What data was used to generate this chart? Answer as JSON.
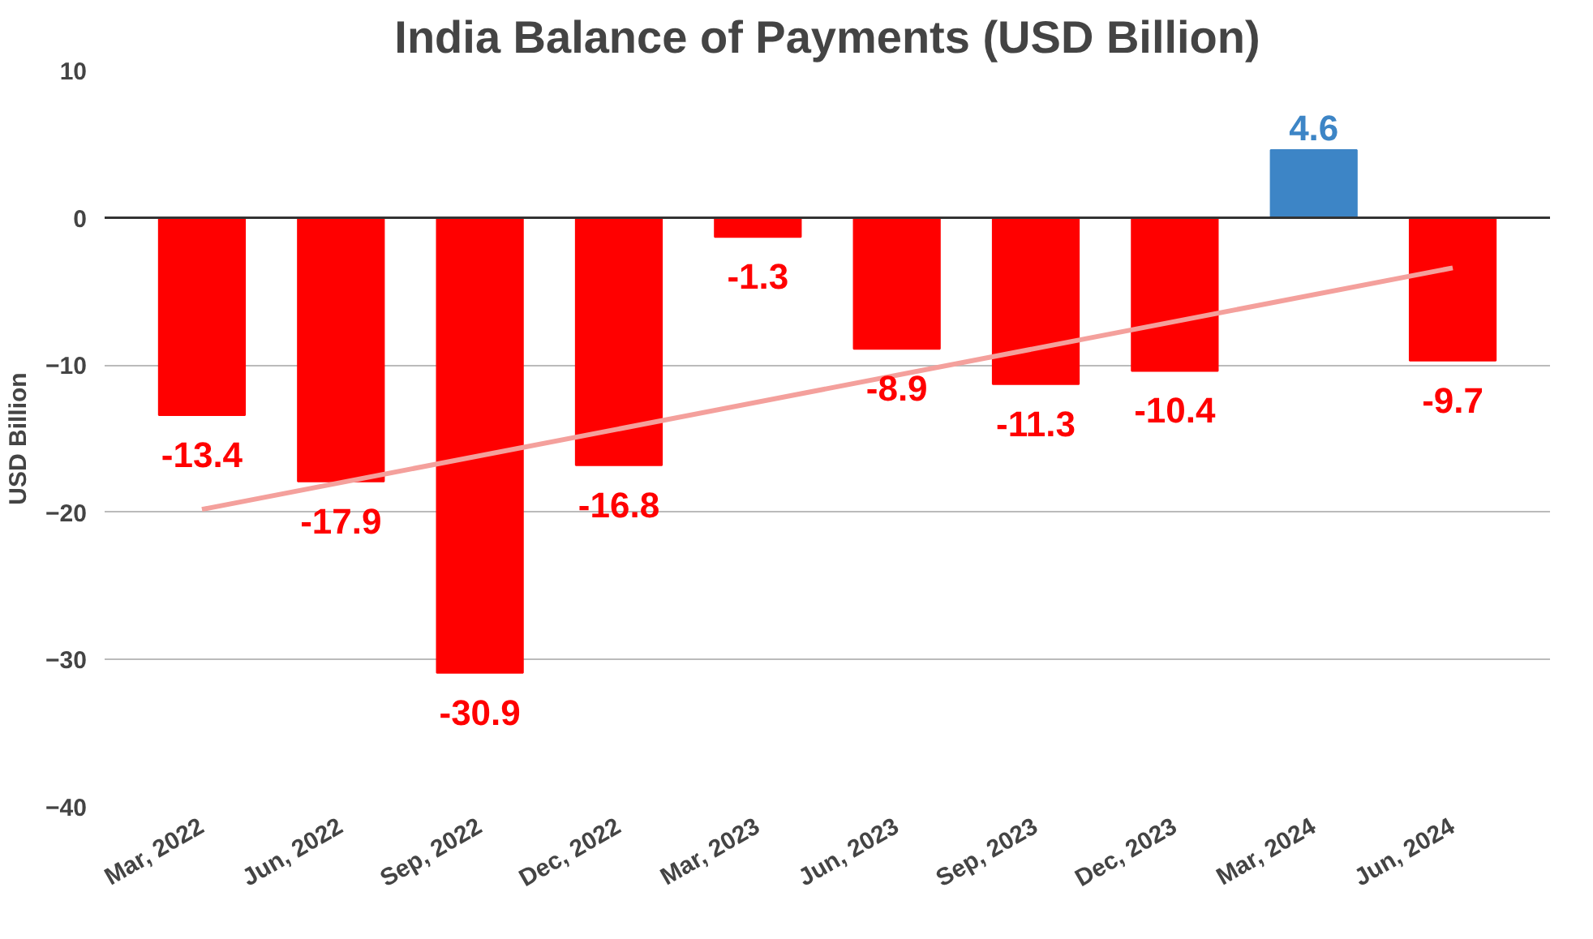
{
  "chart_data": {
    "type": "bar",
    "title": "India Balance of Payments (USD Billion)",
    "ylabel": "USD Billion",
    "categories": [
      "Mar, 2022",
      "Jun, 2022",
      "Sep, 2022",
      "Dec, 2022",
      "Mar, 2023",
      "Jun, 2023",
      "Sep, 2023",
      "Dec, 2023",
      "Mar, 2024",
      "Jun, 2024"
    ],
    "series": [
      {
        "values": [
          -13.4,
          -17.9,
          -30.9,
          -16.8,
          -1.3,
          -8.9,
          -11.3,
          -10.4,
          4.6,
          -9.7
        ],
        "value_labels": [
          "-13.4",
          "-17.9",
          "-30.9",
          "-16.8",
          "-1.3",
          "-8.9",
          "-11.3",
          "-10.4",
          "4.6",
          "-9.7"
        ],
        "colors": [
          "#ff0000",
          "#ff0000",
          "#ff0000",
          "#ff0000",
          "#ff0000",
          "#ff0000",
          "#ff0000",
          "#ff0000",
          "#3d85c6",
          "#ff0000"
        ]
      },
      {
        "type": "line",
        "color": "#f4a09c",
        "x": [
          "Mar, 2022",
          "Jun, 2024"
        ],
        "values": [
          -19.8,
          -3.4
        ]
      }
    ],
    "ylim": [
      -40,
      10
    ],
    "yticks": [
      -40,
      -30,
      -20,
      -10,
      0,
      10
    ],
    "grid": "y"
  }
}
